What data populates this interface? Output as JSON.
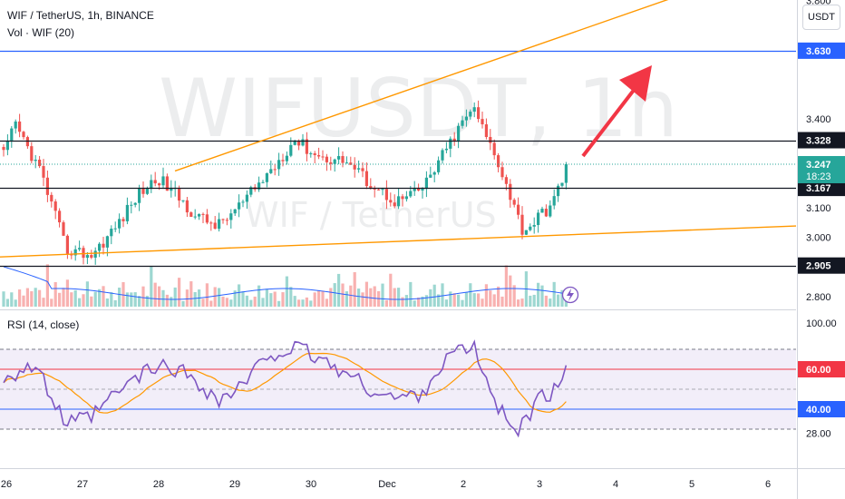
{
  "header": {
    "title": "WIF / TetherUS, 1h, BINANCE",
    "volume_label": "Vol · WIF (20)",
    "rsi_label": "RSI (14, close)",
    "currency_button": "USDT"
  },
  "watermark": {
    "symbol": "WIFUSDT, 1h",
    "name": "WIF / TetherUS"
  },
  "colors": {
    "up": "#26a69a",
    "down": "#ef5350",
    "trendline": "#ff9800",
    "level_line": "#131722",
    "resistance_line": "#2962ff",
    "arrow": "#f23645",
    "volume_ma": "#2962ff",
    "rsi_line": "#7e57c2",
    "rsi_ma": "#ff9800",
    "rsi_band_fill": "#ede7f6",
    "rsi_60": "#f23645",
    "rsi_40": "#2962ff"
  },
  "chart_data": [
    {
      "type": "candlestick",
      "panel": "price",
      "price_axis_ticks": [
        3.8,
        3.4,
        3.1,
        3.0,
        2.8
      ],
      "price_axis_labels": [
        "3.800",
        "3.400",
        "3.100",
        "3.000",
        "2.800"
      ],
      "ylim": [
        2.73,
        3.95
      ],
      "time_axis_labels": [
        "26",
        "27",
        "28",
        "29",
        "30",
        "Dec",
        "2",
        "3",
        "4",
        "5",
        "6"
      ],
      "horizontal_levels": [
        {
          "value": 3.63,
          "label": "3.630",
          "style": "blue"
        },
        {
          "value": 3.328,
          "label": "3.328",
          "style": "black"
        },
        {
          "value": 3.167,
          "label": "3.167",
          "style": "black"
        },
        {
          "value": 2.905,
          "label": "2.905",
          "style": "black"
        }
      ],
      "last_price": {
        "value": 3.247,
        "label": "3.247",
        "countdown": "18:23"
      },
      "trendlines": [
        {
          "name": "upper",
          "from": [
            "28",
            3.205
          ],
          "to": [
            "6",
            3.92
          ]
        },
        {
          "name": "lower",
          "from": [
            "26",
            2.935
          ],
          "to": [
            "6",
            3.035
          ]
        }
      ],
      "annotation": "red arrow pointing up toward 3.630 target",
      "close_anchors": [
        [
          "26",
          3.16
        ],
        [
          "26",
          3.38
        ],
        [
          "26",
          3.22
        ],
        [
          "27",
          2.96
        ],
        [
          "27",
          2.94
        ],
        [
          "27",
          3.04
        ],
        [
          "28",
          3.15
        ],
        [
          "28",
          3.2
        ],
        [
          "28",
          3.14
        ],
        [
          "28",
          3.07
        ],
        [
          "29",
          3.04
        ],
        [
          "29",
          3.12
        ],
        [
          "29",
          3.22
        ],
        [
          "30",
          3.33
        ],
        [
          "30",
          3.27
        ],
        [
          "30",
          3.26
        ],
        [
          "Dec",
          3.18
        ],
        [
          "Dec",
          3.12
        ],
        [
          "Dec",
          3.16
        ],
        [
          "2",
          3.3
        ],
        [
          "2",
          3.44
        ],
        [
          "2",
          3.26
        ],
        [
          "3",
          3.02
        ],
        [
          "3",
          3.1
        ],
        [
          "3",
          3.247
        ]
      ]
    },
    {
      "type": "bar",
      "panel": "volume",
      "series_name": "Vol · WIF (20)",
      "note": "volume histogram with 20-period moving average; relative heights only"
    },
    {
      "type": "line",
      "panel": "rsi",
      "title": "RSI (14, close)",
      "ylim": [
        22,
        100
      ],
      "axis_labels": [
        "100.00",
        "60.00",
        "40.00",
        "28.00"
      ],
      "axis_ticks": [
        100,
        60,
        40,
        28
      ],
      "band": [
        30,
        70
      ],
      "highlight_levels": [
        60,
        40
      ],
      "rsi_anchors": [
        [
          "26",
          55
        ],
        [
          "26",
          62
        ],
        [
          "27",
          32
        ],
        [
          "27",
          36
        ],
        [
          "27",
          48
        ],
        [
          "28",
          58
        ],
        [
          "28",
          62
        ],
        [
          "28",
          56
        ],
        [
          "29",
          44
        ],
        [
          "29",
          52
        ],
        [
          "29",
          68
        ],
        [
          "30",
          70
        ],
        [
          "30",
          60
        ],
        [
          "Dec",
          50
        ],
        [
          "Dec",
          45
        ],
        [
          "Dec",
          48
        ],
        [
          "2",
          66
        ],
        [
          "2",
          72
        ],
        [
          "2",
          40
        ],
        [
          "3",
          30
        ],
        [
          "3",
          45
        ],
        [
          "3",
          50
        ],
        [
          "3",
          62
        ]
      ]
    }
  ]
}
